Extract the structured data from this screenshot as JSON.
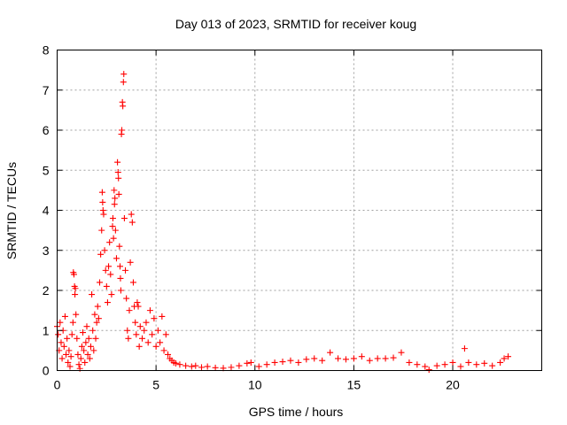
{
  "chart_data": {
    "type": "scatter",
    "title": "Day 013 of 2023, SRMTID for receiver koug",
    "xlabel": "GPS time / hours",
    "ylabel": "SRMTID / TECUs",
    "xlim": [
      0,
      24.5
    ],
    "ylim": [
      0,
      8
    ],
    "xticks": [
      0,
      5,
      10,
      15,
      20
    ],
    "yticks": [
      0,
      1,
      2,
      3,
      4,
      5,
      6,
      7,
      8
    ],
    "xtick_labels": [
      "0",
      "5",
      "10",
      "15",
      "20"
    ],
    "ytick_labels": [
      "0",
      "1",
      "2",
      "3",
      "4",
      "5",
      "6",
      "7",
      "8"
    ],
    "grid": true,
    "marker": "+",
    "color": "#ff0000",
    "series": [
      {
        "name": "SRMTID",
        "points": [
          [
            0.0,
            1.1
          ],
          [
            0.05,
            0.9
          ],
          [
            0.1,
            0.5
          ],
          [
            0.15,
            1.2
          ],
          [
            0.2,
            0.7
          ],
          [
            0.25,
            0.3
          ],
          [
            0.3,
            1.0
          ],
          [
            0.35,
            0.6
          ],
          [
            0.4,
            1.35
          ],
          [
            0.45,
            0.4
          ],
          [
            0.5,
            0.8
          ],
          [
            0.55,
            0.2
          ],
          [
            0.6,
            0.5
          ],
          [
            0.65,
            0.1
          ],
          [
            0.7,
            0.35
          ],
          [
            0.75,
            0.9
          ],
          [
            0.8,
            1.2
          ],
          [
            0.82,
            2.45
          ],
          [
            0.85,
            2.4
          ],
          [
            0.88,
            2.1
          ],
          [
            0.9,
            1.9
          ],
          [
            0.92,
            2.05
          ],
          [
            0.95,
            1.4
          ],
          [
            1.0,
            0.8
          ],
          [
            1.05,
            0.4
          ],
          [
            1.1,
            0.15
          ],
          [
            1.15,
            0.05
          ],
          [
            1.2,
            0.3
          ],
          [
            1.25,
            0.6
          ],
          [
            1.3,
            0.95
          ],
          [
            1.35,
            0.5
          ],
          [
            1.4,
            0.2
          ],
          [
            1.45,
            0.7
          ],
          [
            1.5,
            1.1
          ],
          [
            1.55,
            0.4
          ],
          [
            1.6,
            0.8
          ],
          [
            1.65,
            0.3
          ],
          [
            1.7,
            0.6
          ],
          [
            1.75,
            1.9
          ],
          [
            1.8,
            1.0
          ],
          [
            1.85,
            0.5
          ],
          [
            1.9,
            1.4
          ],
          [
            1.95,
            0.8
          ],
          [
            2.0,
            1.2
          ],
          [
            2.05,
            1.6
          ],
          [
            2.1,
            1.3
          ],
          [
            2.15,
            2.2
          ],
          [
            2.2,
            2.9
          ],
          [
            2.25,
            3.5
          ],
          [
            2.28,
            4.45
          ],
          [
            2.3,
            4.2
          ],
          [
            2.32,
            4.0
          ],
          [
            2.35,
            3.9
          ],
          [
            2.4,
            3.0
          ],
          [
            2.45,
            2.5
          ],
          [
            2.5,
            2.1
          ],
          [
            2.55,
            1.7
          ],
          [
            2.6,
            2.6
          ],
          [
            2.65,
            3.2
          ],
          [
            2.7,
            2.4
          ],
          [
            2.75,
            1.9
          ],
          [
            2.8,
            3.6
          ],
          [
            2.82,
            3.8
          ],
          [
            2.85,
            3.3
          ],
          [
            2.88,
            4.5
          ],
          [
            2.9,
            4.15
          ],
          [
            2.92,
            4.3
          ],
          [
            2.95,
            3.5
          ],
          [
            3.0,
            2.8
          ],
          [
            3.05,
            5.2
          ],
          [
            3.08,
            4.95
          ],
          [
            3.1,
            4.8
          ],
          [
            3.12,
            4.4
          ],
          [
            3.15,
            3.1
          ],
          [
            3.18,
            2.6
          ],
          [
            3.2,
            2.3
          ],
          [
            3.22,
            2.0
          ],
          [
            3.25,
            5.9
          ],
          [
            3.27,
            6.0
          ],
          [
            3.3,
            6.7
          ],
          [
            3.32,
            6.6
          ],
          [
            3.35,
            7.2
          ],
          [
            3.37,
            7.4
          ],
          [
            3.4,
            3.8
          ],
          [
            3.45,
            2.5
          ],
          [
            3.5,
            1.8
          ],
          [
            3.55,
            1.0
          ],
          [
            3.6,
            0.8
          ],
          [
            3.65,
            1.5
          ],
          [
            3.7,
            2.7
          ],
          [
            3.75,
            3.9
          ],
          [
            3.8,
            3.7
          ],
          [
            3.85,
            2.2
          ],
          [
            3.9,
            1.6
          ],
          [
            3.95,
            1.2
          ],
          [
            4.0,
            0.9
          ],
          [
            4.05,
            1.7
          ],
          [
            4.1,
            1.6
          ],
          [
            4.15,
            0.6
          ],
          [
            4.2,
            1.1
          ],
          [
            4.3,
            0.8
          ],
          [
            4.4,
            1.0
          ],
          [
            4.5,
            1.2
          ],
          [
            4.6,
            0.7
          ],
          [
            4.7,
            1.5
          ],
          [
            4.8,
            0.9
          ],
          [
            4.9,
            1.3
          ],
          [
            5.0,
            0.6
          ],
          [
            5.1,
            1.0
          ],
          [
            5.2,
            0.7
          ],
          [
            5.3,
            1.35
          ],
          [
            5.4,
            0.5
          ],
          [
            5.5,
            0.9
          ],
          [
            5.6,
            0.4
          ],
          [
            5.7,
            0.3
          ],
          [
            5.8,
            0.25
          ],
          [
            5.9,
            0.2
          ],
          [
            6.0,
            0.18
          ],
          [
            6.2,
            0.15
          ],
          [
            6.5,
            0.12
          ],
          [
            6.8,
            0.1
          ],
          [
            7.0,
            0.12
          ],
          [
            7.3,
            0.08
          ],
          [
            7.6,
            0.1
          ],
          [
            8.0,
            0.07
          ],
          [
            8.4,
            0.06
          ],
          [
            8.8,
            0.08
          ],
          [
            9.2,
            0.12
          ],
          [
            9.6,
            0.18
          ],
          [
            9.8,
            0.2
          ],
          [
            10.2,
            0.1
          ],
          [
            10.6,
            0.15
          ],
          [
            11.0,
            0.2
          ],
          [
            11.4,
            0.22
          ],
          [
            11.8,
            0.25
          ],
          [
            12.2,
            0.2
          ],
          [
            12.6,
            0.28
          ],
          [
            13.0,
            0.3
          ],
          [
            13.4,
            0.25
          ],
          [
            13.8,
            0.45
          ],
          [
            14.2,
            0.3
          ],
          [
            14.6,
            0.28
          ],
          [
            15.0,
            0.3
          ],
          [
            15.4,
            0.35
          ],
          [
            15.8,
            0.25
          ],
          [
            16.2,
            0.3
          ],
          [
            16.6,
            0.3
          ],
          [
            17.0,
            0.32
          ],
          [
            17.4,
            0.45
          ],
          [
            17.8,
            0.2
          ],
          [
            18.2,
            0.15
          ],
          [
            18.6,
            0.1
          ],
          [
            18.8,
            0.02
          ],
          [
            19.2,
            0.12
          ],
          [
            19.6,
            0.15
          ],
          [
            20.0,
            0.2
          ],
          [
            20.4,
            0.1
          ],
          [
            20.6,
            0.55
          ],
          [
            20.8,
            0.2
          ],
          [
            21.2,
            0.15
          ],
          [
            21.6,
            0.18
          ],
          [
            22.0,
            0.12
          ],
          [
            22.4,
            0.2
          ],
          [
            22.6,
            0.3
          ],
          [
            22.8,
            0.35
          ]
        ]
      }
    ]
  }
}
